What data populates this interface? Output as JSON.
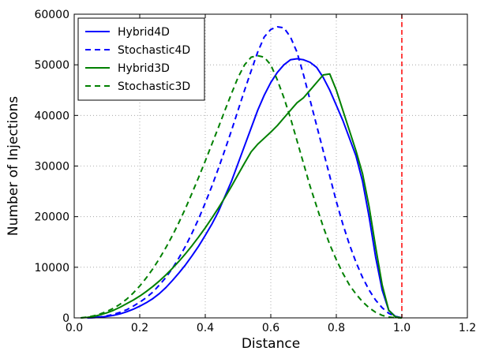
{
  "chart_data": {
    "type": "line",
    "xlabel": "Distance",
    "ylabel": "Number of Injections",
    "xlim": [
      0.0,
      1.2
    ],
    "ylim": [
      0,
      60000
    ],
    "xticks": [
      "0.0",
      "0.2",
      "0.4",
      "0.6",
      "0.8",
      "1.0",
      "1.2"
    ],
    "yticks": [
      "0",
      "10000",
      "20000",
      "30000",
      "40000",
      "50000",
      "60000"
    ],
    "xtick_values": [
      0.0,
      0.2,
      0.4,
      0.6,
      0.8,
      1.0,
      1.2
    ],
    "ytick_values": [
      0,
      10000,
      20000,
      30000,
      40000,
      50000,
      60000
    ],
    "grid": true,
    "legend_position": "top-left",
    "reference_line": {
      "x": 1.0,
      "color": "#ff0000",
      "style": "dashed"
    },
    "series": [
      {
        "name": "Hybrid4D",
        "color": "#0000ff",
        "style": "solid",
        "x": [
          0.04,
          0.06,
          0.08,
          0.1,
          0.12,
          0.14,
          0.16,
          0.18,
          0.2,
          0.22,
          0.24,
          0.26,
          0.28,
          0.3,
          0.32,
          0.34,
          0.36,
          0.38,
          0.4,
          0.42,
          0.44,
          0.46,
          0.48,
          0.5,
          0.52,
          0.54,
          0.56,
          0.58,
          0.6,
          0.62,
          0.64,
          0.66,
          0.68,
          0.7,
          0.72,
          0.74,
          0.76,
          0.78,
          0.8,
          0.82,
          0.84,
          0.86,
          0.88,
          0.9,
          0.92,
          0.94,
          0.96,
          0.98,
          1.0
        ],
        "y": [
          0,
          50,
          150,
          300,
          500,
          800,
          1200,
          1700,
          2300,
          3000,
          3800,
          4800,
          6000,
          7400,
          8900,
          10500,
          12300,
          14200,
          16300,
          18500,
          21000,
          24000,
          27000,
          30500,
          34000,
          37500,
          41000,
          44000,
          46500,
          48500,
          50000,
          51000,
          51200,
          51000,
          50500,
          49500,
          47500,
          45000,
          42000,
          39000,
          35500,
          32000,
          27000,
          20000,
          12000,
          5500,
          1500,
          300,
          0
        ]
      },
      {
        "name": "Stochastic4D",
        "color": "#0000ff",
        "style": "dashed",
        "x": [
          0.04,
          0.06,
          0.08,
          0.1,
          0.12,
          0.14,
          0.16,
          0.18,
          0.2,
          0.22,
          0.24,
          0.26,
          0.28,
          0.3,
          0.32,
          0.34,
          0.36,
          0.38,
          0.4,
          0.42,
          0.44,
          0.46,
          0.48,
          0.5,
          0.52,
          0.54,
          0.56,
          0.58,
          0.6,
          0.62,
          0.64,
          0.66,
          0.68,
          0.7,
          0.72,
          0.74,
          0.76,
          0.78,
          0.8,
          0.82,
          0.84,
          0.86,
          0.88,
          0.9,
          0.92,
          0.94,
          0.96,
          0.98,
          1.0
        ],
        "y": [
          0,
          80,
          200,
          400,
          700,
          1100,
          1600,
          2300,
          3100,
          4000,
          5100,
          6500,
          8000,
          9800,
          11900,
          14200,
          16800,
          19600,
          22700,
          26000,
          29500,
          33200,
          37000,
          41000,
          45000,
          48800,
          52500,
          55500,
          57000,
          57500,
          57300,
          55500,
          52500,
          48000,
          43000,
          38000,
          33000,
          28000,
          23000,
          18500,
          14500,
          11000,
          8000,
          5500,
          3500,
          2000,
          900,
          300,
          0
        ]
      },
      {
        "name": "Hybrid3D",
        "color": "#008000",
        "style": "solid",
        "x": [
          0.02,
          0.04,
          0.06,
          0.08,
          0.1,
          0.12,
          0.14,
          0.16,
          0.18,
          0.2,
          0.22,
          0.24,
          0.26,
          0.28,
          0.3,
          0.32,
          0.34,
          0.36,
          0.38,
          0.4,
          0.42,
          0.44,
          0.46,
          0.48,
          0.5,
          0.52,
          0.54,
          0.56,
          0.58,
          0.6,
          0.62,
          0.64,
          0.66,
          0.68,
          0.7,
          0.72,
          0.74,
          0.76,
          0.78,
          0.8,
          0.82,
          0.84,
          0.86,
          0.88,
          0.9,
          0.92,
          0.94,
          0.96,
          0.98,
          1.0
        ],
        "y": [
          0,
          100,
          300,
          600,
          1000,
          1500,
          2100,
          2800,
          3500,
          4300,
          5200,
          6200,
          7300,
          8500,
          9800,
          11200,
          12700,
          14300,
          16000,
          17800,
          19700,
          21700,
          23800,
          26000,
          28300,
          30600,
          32800,
          34300,
          35500,
          36700,
          38000,
          39500,
          41000,
          42500,
          43500,
          45000,
          46500,
          48000,
          48200,
          45000,
          41000,
          37000,
          33000,
          28500,
          22000,
          14000,
          6500,
          1500,
          200,
          0
        ]
      },
      {
        "name": "Stochastic3D",
        "color": "#008000",
        "style": "dashed",
        "x": [
          0.02,
          0.04,
          0.06,
          0.08,
          0.1,
          0.12,
          0.14,
          0.16,
          0.18,
          0.2,
          0.22,
          0.24,
          0.26,
          0.28,
          0.3,
          0.32,
          0.34,
          0.36,
          0.38,
          0.4,
          0.42,
          0.44,
          0.46,
          0.48,
          0.5,
          0.52,
          0.54,
          0.56,
          0.58,
          0.6,
          0.62,
          0.64,
          0.66,
          0.68,
          0.7,
          0.72,
          0.74,
          0.76,
          0.78,
          0.8,
          0.82,
          0.84,
          0.86,
          0.88,
          0.9,
          0.92,
          0.94,
          0.96,
          0.98,
          1.0
        ],
        "y": [
          0,
          150,
          400,
          800,
          1300,
          1900,
          2700,
          3700,
          4900,
          6300,
          7900,
          9700,
          11700,
          13900,
          16300,
          18900,
          21700,
          24700,
          27800,
          31000,
          34300,
          37600,
          41000,
          44300,
          47500,
          50000,
          51500,
          51800,
          51500,
          50000,
          47000,
          43500,
          39500,
          35000,
          30500,
          26000,
          22000,
          18000,
          14500,
          11500,
          8800,
          6500,
          4700,
          3200,
          2000,
          1100,
          500,
          150,
          30,
          0
        ]
      }
    ]
  }
}
